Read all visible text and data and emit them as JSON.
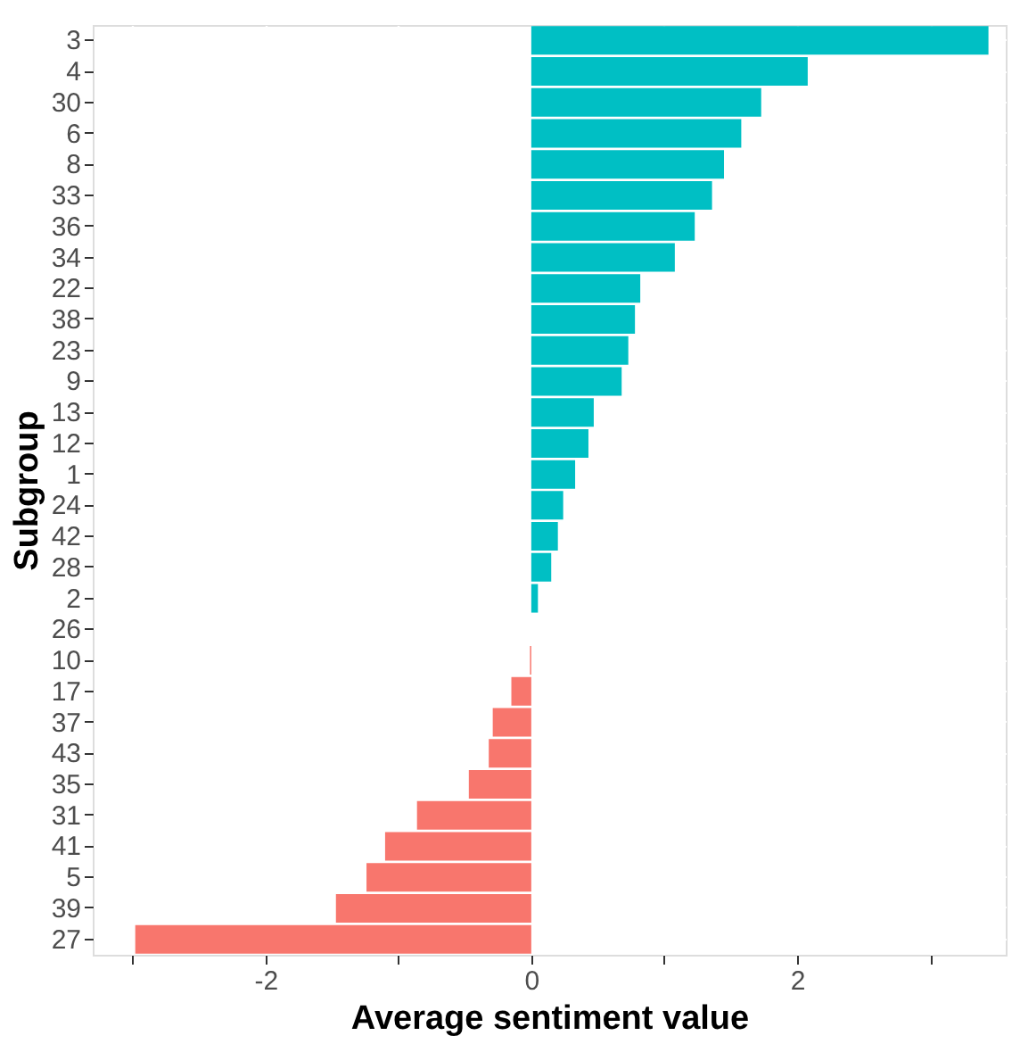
{
  "chart_data": {
    "type": "bar",
    "orientation": "horizontal",
    "xlabel": "Average sentiment value",
    "ylabel": "Subgroup",
    "categories": [
      "3",
      "4",
      "30",
      "6",
      "8",
      "33",
      "36",
      "34",
      "22",
      "38",
      "23",
      "9",
      "13",
      "12",
      "1",
      "24",
      "42",
      "28",
      "2",
      "26",
      "10",
      "17",
      "37",
      "43",
      "35",
      "31",
      "41",
      "5",
      "39",
      "27"
    ],
    "values": [
      3.44,
      2.08,
      1.73,
      1.58,
      1.45,
      1.36,
      1.23,
      1.08,
      0.82,
      0.78,
      0.73,
      0.68,
      0.47,
      0.43,
      0.33,
      0.24,
      0.2,
      0.15,
      0.05,
      0,
      -0.01,
      -0.15,
      -0.29,
      -0.32,
      -0.47,
      -0.86,
      -1.1,
      -1.24,
      -1.47,
      -2.98
    ],
    "colors": [
      "#00bfc4",
      "#00bfc4",
      "#00bfc4",
      "#00bfc4",
      "#00bfc4",
      "#00bfc4",
      "#00bfc4",
      "#00bfc4",
      "#00bfc4",
      "#00bfc4",
      "#00bfc4",
      "#00bfc4",
      "#00bfc4",
      "#00bfc4",
      "#00bfc4",
      "#00bfc4",
      "#00bfc4",
      "#00bfc4",
      "#00bfc4",
      "#00bfc4",
      "#f8766d",
      "#f8766d",
      "#f8766d",
      "#f8766d",
      "#f8766d",
      "#f8766d",
      "#f8766d",
      "#f8766d",
      "#f8766d",
      "#f8766d"
    ],
    "xlim": [
      -3.3,
      3.57
    ],
    "xticks": [
      {
        "value": -3,
        "label": null
      },
      -2,
      {
        "value": -1,
        "label": null
      },
      0,
      {
        "value": 1,
        "label": null
      },
      2,
      {
        "value": 3,
        "label": null
      }
    ],
    "grid": true
  }
}
